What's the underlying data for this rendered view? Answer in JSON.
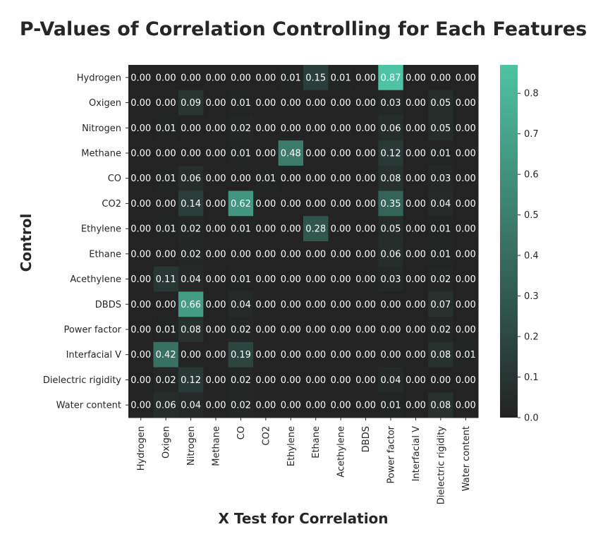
{
  "chart_data": {
    "type": "heatmap",
    "title": "P-Values of Correlation Controlling for Each Features",
    "xlabel": "X Test for Correlation",
    "ylabel": "Control",
    "x_categories": [
      "Hydrogen",
      "Oxigen",
      "Nitrogen",
      "Methane",
      "CO",
      "CO2",
      "Ethylene",
      "Ethane",
      "Acethylene",
      "DBDS",
      "Power factor",
      "Interfacial V",
      "Dielectric rigidity",
      "Water content"
    ],
    "y_categories": [
      "Hydrogen",
      "Oxigen",
      "Nitrogen",
      "Methane",
      "CO",
      "CO2",
      "Ethylene",
      "Ethane",
      "Acethylene",
      "DBDS",
      "Power factor",
      "Interfacial V",
      "Dielectric rigidity",
      "Water content"
    ],
    "values": [
      [
        0.0,
        0.0,
        0.0,
        0.0,
        0.0,
        0.0,
        0.01,
        0.15,
        0.01,
        0.0,
        0.87,
        0.0,
        0.0,
        0.0
      ],
      [
        0.0,
        0.0,
        0.09,
        0.0,
        0.01,
        0.0,
        0.0,
        0.0,
        0.0,
        0.0,
        0.03,
        0.0,
        0.05,
        0.0
      ],
      [
        0.0,
        0.01,
        0.0,
        0.0,
        0.02,
        0.0,
        0.0,
        0.0,
        0.0,
        0.0,
        0.06,
        0.0,
        0.05,
        0.0
      ],
      [
        0.0,
        0.0,
        0.0,
        0.0,
        0.01,
        0.0,
        0.48,
        0.0,
        0.0,
        0.0,
        0.12,
        0.0,
        0.01,
        0.0
      ],
      [
        0.0,
        0.01,
        0.06,
        0.0,
        0.0,
        0.01,
        0.0,
        0.0,
        0.0,
        0.0,
        0.08,
        0.0,
        0.03,
        0.0
      ],
      [
        0.0,
        0.0,
        0.14,
        0.0,
        0.62,
        0.0,
        0.0,
        0.0,
        0.0,
        0.0,
        0.35,
        0.0,
        0.04,
        0.0
      ],
      [
        0.0,
        0.01,
        0.02,
        0.0,
        0.01,
        0.0,
        0.0,
        0.28,
        0.0,
        0.0,
        0.05,
        0.0,
        0.01,
        0.0
      ],
      [
        0.0,
        0.0,
        0.02,
        0.0,
        0.0,
        0.0,
        0.0,
        0.0,
        0.0,
        0.0,
        0.06,
        0.0,
        0.01,
        0.0
      ],
      [
        0.0,
        0.11,
        0.04,
        0.0,
        0.01,
        0.0,
        0.0,
        0.0,
        0.0,
        0.0,
        0.03,
        0.0,
        0.02,
        0.0
      ],
      [
        0.0,
        0.0,
        0.66,
        0.0,
        0.04,
        0.0,
        0.0,
        0.0,
        0.0,
        0.0,
        0.0,
        0.0,
        0.07,
        0.0
      ],
      [
        0.0,
        0.01,
        0.08,
        0.0,
        0.02,
        0.0,
        0.0,
        0.0,
        0.0,
        0.0,
        0.0,
        0.0,
        0.02,
        0.0
      ],
      [
        0.0,
        0.42,
        0.0,
        0.0,
        0.19,
        0.0,
        0.0,
        0.0,
        0.0,
        0.0,
        0.0,
        0.0,
        0.08,
        0.01
      ],
      [
        0.0,
        0.02,
        0.12,
        0.0,
        0.02,
        0.0,
        0.0,
        0.0,
        0.0,
        0.0,
        0.04,
        0.0,
        0.0,
        0.0
      ],
      [
        0.0,
        0.06,
        0.04,
        0.0,
        0.02,
        0.0,
        0.0,
        0.0,
        0.0,
        0.0,
        0.01,
        0.0,
        0.08,
        0.0
      ]
    ],
    "value_format": "0.00",
    "colorbar": {
      "range": [
        0.0,
        0.87
      ],
      "ticks": [
        0.0,
        0.1,
        0.2,
        0.3,
        0.4,
        0.5,
        0.6,
        0.7,
        0.8
      ],
      "tick_labels": [
        "0.0",
        "0.1",
        "0.2",
        "0.3",
        "0.4",
        "0.5",
        "0.6",
        "0.7",
        "0.8"
      ],
      "color_low": "#232323",
      "color_high": "#4ec3a4"
    },
    "grid": false,
    "legend": "colorbar-right"
  }
}
